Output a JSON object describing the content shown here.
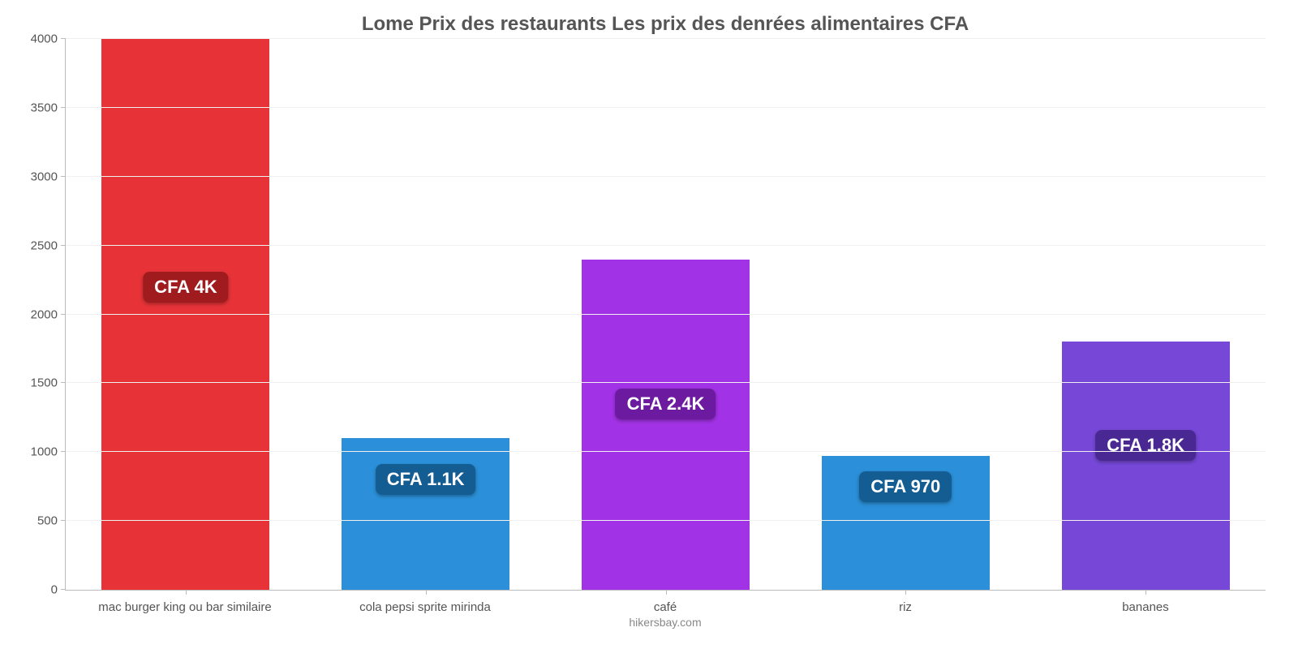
{
  "chart": {
    "type": "bar",
    "title": "Lome Prix des restaurants Les prix des denrées alimentaires CFA",
    "title_fontsize": 24,
    "title_color": "#555555",
    "footer": "hikersbay.com",
    "footer_fontsize": 14,
    "footer_color": "#888888",
    "background_color": "#ffffff",
    "grid_color": "#f0f0f0",
    "axis_color": "#bbbbbb",
    "axis_label_color": "#555555",
    "axis_label_fontsize": 15,
    "ylim": [
      0,
      4000
    ],
    "ytick_step": 500,
    "yticks": [
      0,
      500,
      1000,
      1500,
      2000,
      2500,
      3000,
      3500,
      4000
    ],
    "bar_width": 0.7,
    "label_fontsize": 22,
    "label_text_color": "#ffffff",
    "categories": [
      "mac burger king ou bar similaire",
      "cola pepsi sprite mirinda",
      "café",
      "riz",
      "bananes"
    ],
    "values": [
      4000,
      1100,
      2400,
      970,
      1800
    ],
    "value_labels": [
      "CFA 4K",
      "CFA 1.1K",
      "CFA 2.4K",
      "CFA 970",
      "CFA 1.8K"
    ],
    "bar_colors": [
      "#e73338",
      "#2b90d9",
      "#a232e6",
      "#2b90d9",
      "#7748d8"
    ],
    "label_bg_colors": [
      "#a01b1e",
      "#145d92",
      "#6c1ba1",
      "#145d92",
      "#4a2894"
    ],
    "label_y_position": [
      2200,
      800,
      1350,
      750,
      1050
    ]
  }
}
